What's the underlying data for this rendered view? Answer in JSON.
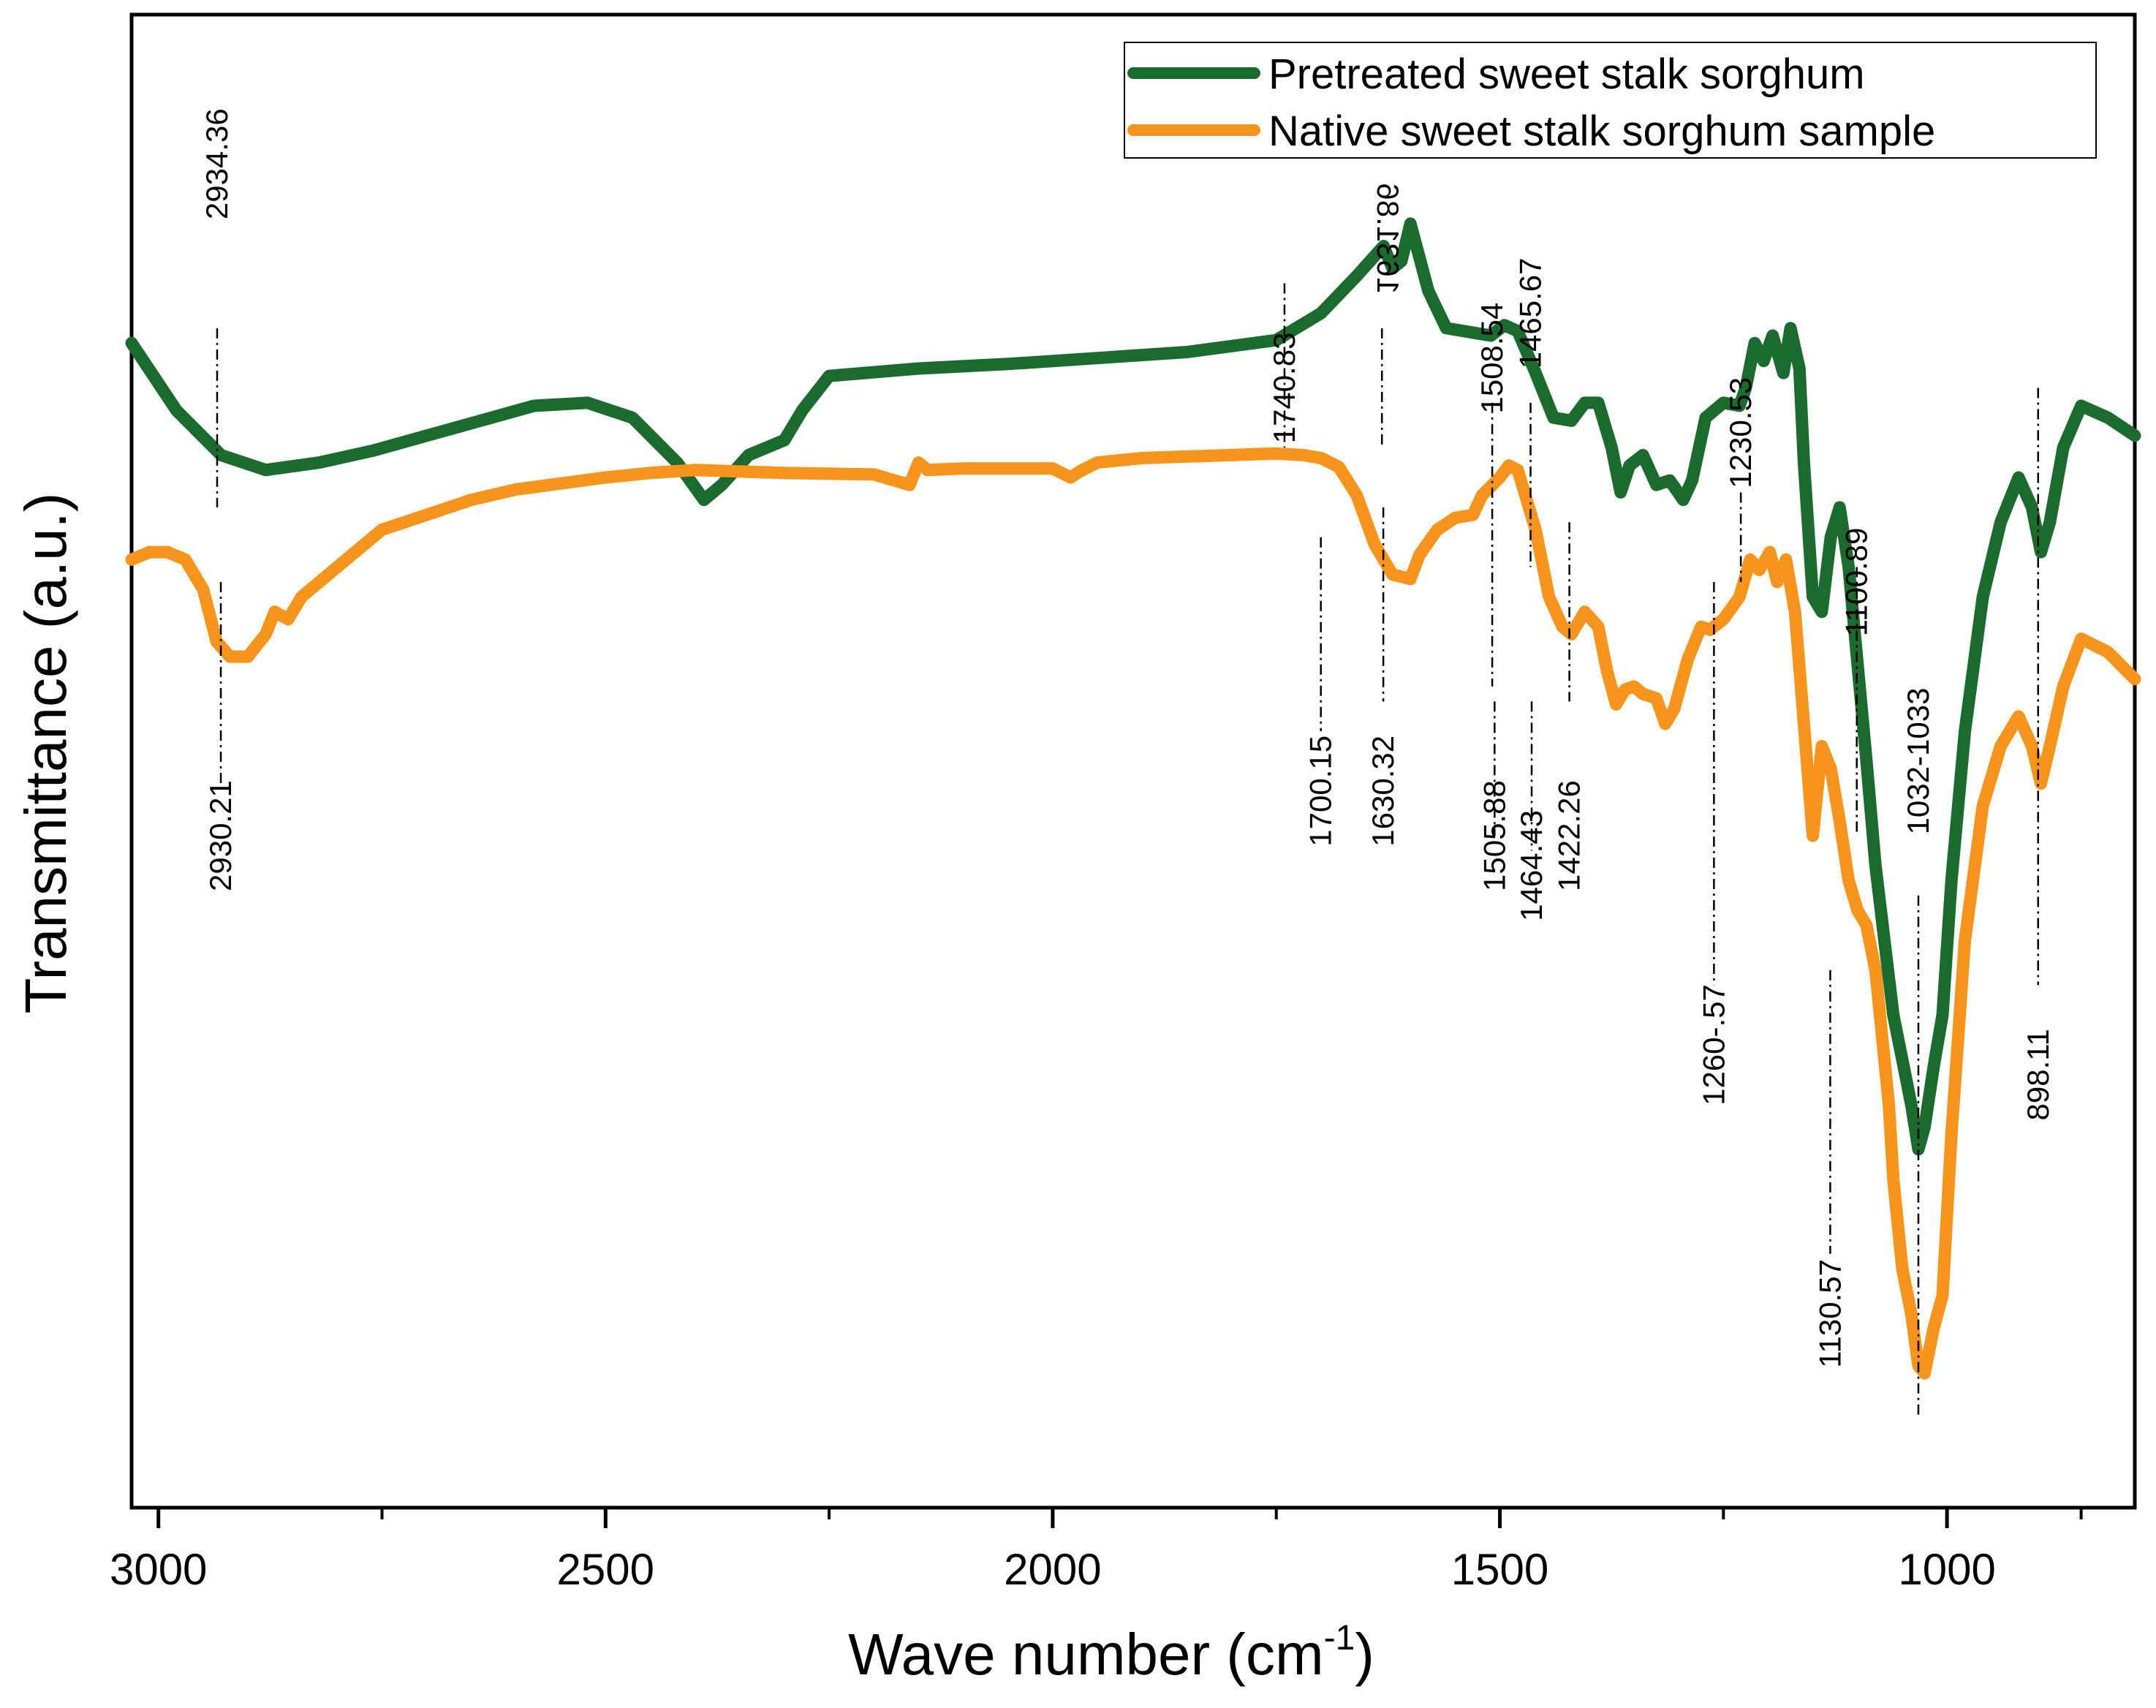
{
  "chart_data": {
    "type": "line",
    "title": "",
    "xlabel": "Wave number (cm",
    "xlabel_sup": "-1",
    "xlabel_close": ")",
    "ylabel": "Transmittance (a.u.)",
    "xlim": [
      3030,
      790
    ],
    "xticks": [
      3000,
      2500,
      2000,
      1500,
      1000
    ],
    "xticks_minor": [
      2750,
      2250,
      1750,
      1250,
      850
    ],
    "ylim": [
      0,
      100
    ],
    "grid": false,
    "legend": {
      "position": "top-right"
    },
    "colors": {
      "pretreated": "#1b6b2f",
      "native": "#f7941d",
      "axis": "#000000"
    },
    "series": [
      {
        "name": "Pretreated sweet stalk sorghum",
        "color": "#1b6b2f",
        "x": [
          3030,
          2980,
          2930,
          2880,
          2820,
          2760,
          2700,
          2640,
          2580,
          2520,
          2470,
          2420,
          2390,
          2370,
          2340,
          2300,
          2280,
          2250,
          2150,
          2050,
          1950,
          1850,
          1750,
          1700,
          1660,
          1630,
          1620,
          1610,
          1600,
          1580,
          1560,
          1540,
          1510,
          1495,
          1480,
          1460,
          1440,
          1420,
          1405,
          1390,
          1375,
          1365,
          1355,
          1340,
          1325,
          1310,
          1295,
          1285,
          1270,
          1250,
          1232,
          1225,
          1215,
          1205,
          1195,
          1183,
          1175,
          1165,
          1160,
          1150,
          1140,
          1130,
          1120,
          1110,
          1100,
          1090,
          1080,
          1070,
          1060,
          1050,
          1040,
          1032,
          1025,
          1015,
          1005,
          995,
          980,
          960,
          940,
          920,
          905,
          895,
          885,
          870,
          850,
          820,
          790
        ],
        "y": [
          78,
          73.5,
          70.5,
          69.5,
          70,
          70.8,
          71.8,
          72.8,
          73.8,
          74,
          73,
          70,
          67.5,
          68.5,
          70.5,
          71.5,
          73.5,
          75.8,
          76.3,
          76.6,
          77,
          77.4,
          78.2,
          80,
          82.5,
          84.5,
          83,
          83.5,
          86,
          81.5,
          79,
          78.8,
          78.5,
          79.2,
          78.8,
          76,
          73,
          72.8,
          74,
          74,
          71,
          68,
          69.8,
          70.5,
          68.5,
          68.8,
          67.5,
          68.8,
          73,
          74,
          73.8,
          75,
          78,
          76.8,
          78.5,
          76,
          79,
          76.3,
          70,
          61,
          60,
          65,
          67,
          63,
          56.5,
          50,
          43,
          38,
          33,
          30,
          27,
          24,
          25.5,
          29.5,
          33,
          42,
          52,
          61,
          66,
          69,
          67,
          64,
          66,
          71,
          73.8,
          73,
          71.8
        ]
      },
      {
        "name": "Native sweet stalk sorghum sample",
        "color": "#f7941d",
        "x": [
          3030,
          3010,
          2990,
          2970,
          2950,
          2935,
          2920,
          2900,
          2880,
          2870,
          2855,
          2840,
          2800,
          2750,
          2700,
          2650,
          2600,
          2500,
          2450,
          2400,
          2300,
          2200,
          2160,
          2150,
          2140,
          2100,
          2000,
          1980,
          1970,
          1950,
          1900,
          1850,
          1800,
          1750,
          1720,
          1700,
          1680,
          1660,
          1640,
          1620,
          1600,
          1590,
          1570,
          1550,
          1530,
          1520,
          1500,
          1490,
          1480,
          1460,
          1445,
          1430,
          1420,
          1405,
          1390,
          1380,
          1370,
          1360,
          1350,
          1340,
          1325,
          1315,
          1305,
          1290,
          1275,
          1265,
          1250,
          1232,
          1220,
          1210,
          1198,
          1190,
          1180,
          1170,
          1160,
          1150,
          1140,
          1130,
          1120,
          1110,
          1100,
          1090,
          1080,
          1075,
          1065,
          1060,
          1050,
          1040,
          1032,
          1025,
          1015,
          1005,
          995,
          980,
          960,
          940,
          920,
          905,
          895,
          885,
          870,
          850,
          820,
          790
        ],
        "y": [
          63.5,
          64,
          64,
          63.5,
          61.5,
          58,
          57,
          57,
          58.5,
          60,
          59.5,
          61,
          63,
          65.5,
          66.5,
          67.5,
          68.2,
          69,
          69.3,
          69.5,
          69.3,
          69.2,
          68.5,
          70,
          69.5,
          69.6,
          69.6,
          69,
          69.4,
          70,
          70.3,
          70.4,
          70.5,
          70.6,
          70.5,
          70.3,
          69.7,
          67.8,
          64.5,
          62.5,
          62.2,
          63.8,
          65.5,
          66.3,
          66.5,
          67.8,
          69,
          69.8,
          69.5,
          65.5,
          61,
          59,
          58.5,
          60,
          59,
          56,
          53.8,
          54.8,
          55,
          54.5,
          54.2,
          52.5,
          53.5,
          56.8,
          59,
          58.8,
          59.5,
          61,
          63.5,
          62.8,
          64,
          62,
          63.5,
          60,
          52.5,
          45,
          51,
          49.5,
          46,
          42,
          40,
          39,
          36,
          33,
          27,
          22,
          16,
          13,
          9.5,
          9,
          12,
          14.2,
          25,
          38,
          47,
          51,
          53,
          51,
          48.5,
          51,
          55,
          58.2,
          57.3,
          55.5
        ]
      }
    ],
    "annotations": [
      {
        "label": "2934.36",
        "x": 2934.36,
        "label_y": 90,
        "line": [
          79,
          67
        ]
      },
      {
        "label": "2930.21",
        "x": 2930.21,
        "label_y": 45,
        "line": [
          62,
          48
        ]
      },
      {
        "label": "1740.83",
        "x": 1740.83,
        "label_y": 75,
        "line": [
          82,
          71
        ]
      },
      {
        "label": "1631.86",
        "x": 1631.86,
        "label_y": 85,
        "line": [
          79,
          71
        ],
        "mirrored": true,
        "small": true
      },
      {
        "label": "1508.54",
        "x": 1508.54,
        "label_y": 77,
        "line": [
          74,
          55
        ]
      },
      {
        "label": "1465.67",
        "x": 1465.67,
        "label_y": 80,
        "line": [
          74,
          63
        ]
      },
      {
        "label": "1230.53",
        "x": 1230.53,
        "label_y": 72,
        "line": [
          68,
          62
        ]
      },
      {
        "label": "1100.89",
        "x": 1100.89,
        "label_y": 62,
        "line": [
          63,
          45
        ]
      },
      {
        "label": "1700.15",
        "x": 1700.15,
        "label_y": 48,
        "line": [
          65,
          52
        ]
      },
      {
        "label": "1630.32",
        "x": 1630.32,
        "label_y": 48,
        "line": [
          67,
          54
        ]
      },
      {
        "label": "1505.88",
        "x": 1505.88,
        "label_y": 45,
        "line": [
          54,
          45
        ]
      },
      {
        "label": "1464.43",
        "x": 1464.43,
        "label_y": 43,
        "line": [
          54,
          44
        ]
      },
      {
        "label": "1422.26",
        "x": 1422.26,
        "label_y": 45,
        "line": [
          66,
          54
        ]
      },
      {
        "label": "1260-.57",
        "x": 1260.57,
        "label_y": 31,
        "line": [
          62,
          35
        ]
      },
      {
        "label": "1130.57",
        "x": 1130.57,
        "label_y": 13,
        "line": [
          36,
          17
        ]
      },
      {
        "label": "1032-1033",
        "x": 1032,
        "label_y": 50,
        "line": [
          41,
          6
        ]
      },
      {
        "label": "898.11",
        "x": 898.11,
        "label_y": 29,
        "line": [
          75,
          35
        ]
      }
    ]
  }
}
